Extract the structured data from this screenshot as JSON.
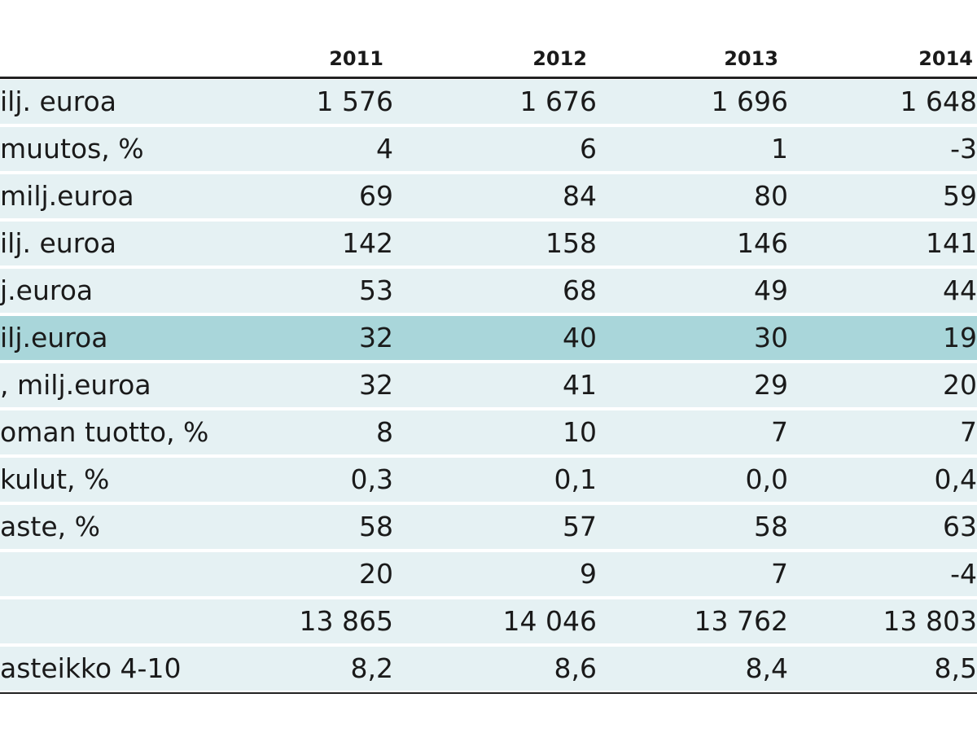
{
  "table": {
    "header": [
      "2011",
      "2012",
      "2013",
      "2014"
    ],
    "highlight_row": 5,
    "rows": [
      {
        "label": "ilj. euroa",
        "values": [
          "1 576",
          "1 676",
          "1 696",
          "1 648"
        ]
      },
      {
        "label": "muutos, %",
        "values": [
          "4",
          "6",
          "1",
          "-3"
        ]
      },
      {
        "label": "milj.euroa",
        "values": [
          "69",
          "84",
          "80",
          "59"
        ]
      },
      {
        "label": "ilj. euroa",
        "values": [
          "142",
          "158",
          "146",
          "141"
        ]
      },
      {
        "label": "j.euroa",
        "values": [
          "53",
          "68",
          "49",
          "44"
        ]
      },
      {
        "label": "ilj.euroa",
        "values": [
          "32",
          "40",
          "30",
          "19"
        ]
      },
      {
        "label": ", milj.euroa",
        "values": [
          "32",
          "41",
          "29",
          "20"
        ]
      },
      {
        "label": "oman tuotto, %",
        "values": [
          "8",
          "10",
          "7",
          "7"
        ]
      },
      {
        "label": "kulut, %",
        "values": [
          "0,3",
          "0,1",
          "0,0",
          "0,4"
        ]
      },
      {
        "label": "aste, %",
        "values": [
          "58",
          "57",
          "58",
          "63"
        ]
      },
      {
        "values": [
          "20",
          "9",
          "7",
          "-4"
        ]
      },
      {
        "values": [
          "13 865",
          "14 046",
          "13 762",
          "13 803"
        ]
      },
      {
        "label": "asteikko 4-10",
        "values": [
          "8,2",
          "8,6",
          "8,4",
          "8,5"
        ]
      }
    ]
  }
}
